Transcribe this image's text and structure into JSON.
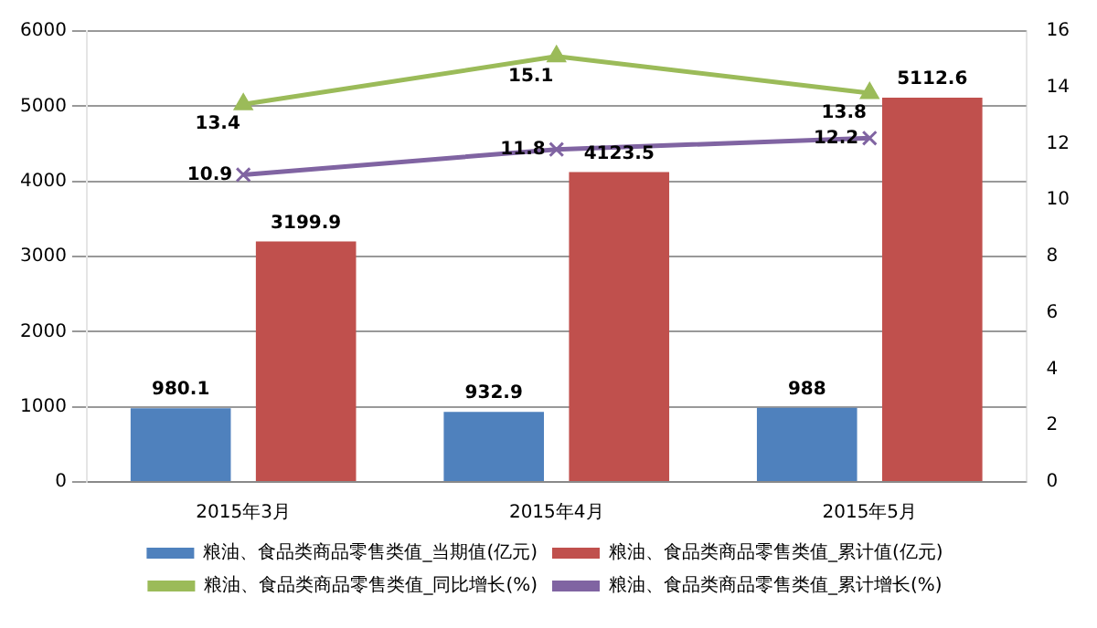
{
  "chart_data": {
    "type": "bar",
    "categories": [
      "2015年3月",
      "2015年4月",
      "2015年5月"
    ],
    "series": [
      {
        "name": "粮油、食品类商品零售类值_当期值(亿元)",
        "color": "#4f81bd",
        "values": [
          980.1,
          932.9,
          988
        ]
      },
      {
        "name": "粮油、食品类商品零售类值_累计值(亿元)",
        "color": "#c0504d",
        "values": [
          3199.9,
          4123.5,
          5112.6
        ]
      },
      {
        "name": "粮油、食品类商品零售类值_同比增长(%)",
        "type": "line",
        "axis": "y2",
        "color": "#9bbb59",
        "marker": "triangle",
        "values": [
          13.4,
          15.1,
          13.8
        ]
      },
      {
        "name": "粮油、食品类商品零售类值_累计增长(%)",
        "type": "line",
        "axis": "y2",
        "color": "#8064a2",
        "marker": "cross",
        "values": [
          10.9,
          11.8,
          12.2
        ]
      }
    ],
    "ylim": [
      0,
      6000
    ],
    "yticks": [
      0,
      1000,
      2000,
      3000,
      4000,
      5000,
      6000
    ],
    "y2lim": [
      0,
      16
    ],
    "y2ticks": [
      0,
      2,
      4,
      6,
      8,
      10,
      12,
      14,
      16
    ],
    "grid": "y",
    "legend": "bottom",
    "data_labels": true
  }
}
